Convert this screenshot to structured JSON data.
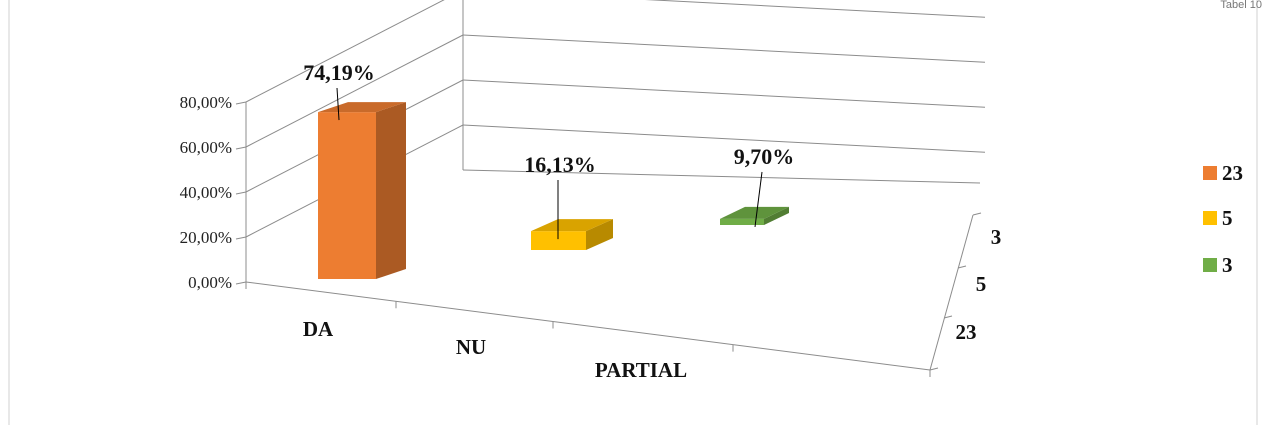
{
  "corner_text": "Tabel 10",
  "chart_data": {
    "type": "bar",
    "categories": [
      "DA",
      "NU",
      "PARTIAL"
    ],
    "series": [
      {
        "name": "23",
        "values": [
          74.19,
          null,
          null
        ],
        "color": "#ED7D31"
      },
      {
        "name": "5",
        "values": [
          null,
          16.13,
          null
        ],
        "color": "#FFC000"
      },
      {
        "name": "3",
        "values": [
          null,
          null,
          9.7
        ],
        "color": "#70AD47"
      }
    ],
    "data_labels": [
      "74,19%",
      "16,13%",
      "9,70%"
    ],
    "y_ticks": [
      "0,00%",
      "20,00%",
      "40,00%",
      "60,00%",
      "80,00%"
    ],
    "depth_ticks": [
      "3",
      "5",
      "23"
    ],
    "ylim": [
      0,
      80
    ],
    "grid": true,
    "legend_position": "right",
    "style": "3d-column"
  }
}
